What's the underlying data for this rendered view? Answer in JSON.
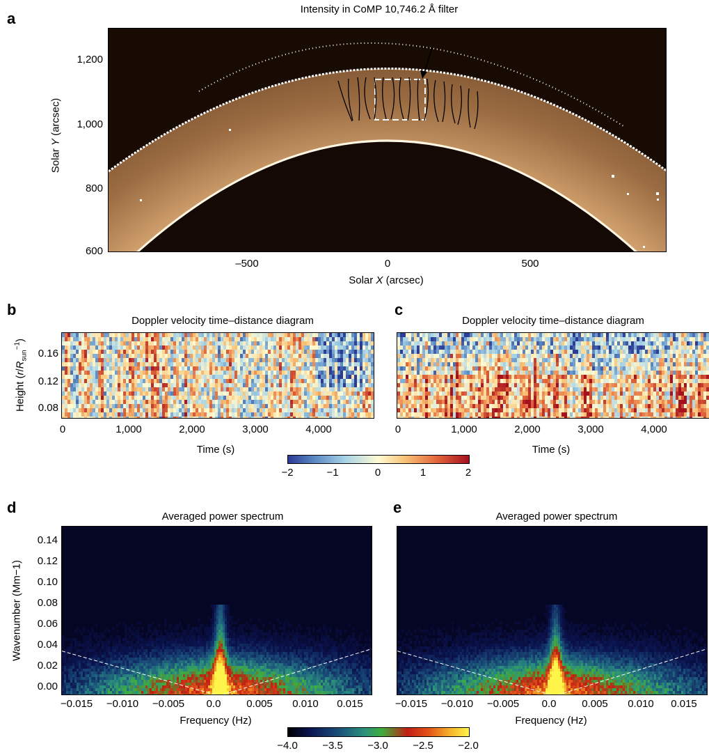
{
  "panels": {
    "a": {
      "letter": "a",
      "title": "Intensity in CoMP 10,746.2 Å filter",
      "xlabel": "Solar X (arcsec)",
      "ylabel": "Solar Y (arcsec)",
      "xticks": [
        "–500",
        "0",
        "500"
      ],
      "yticks": [
        "1,200",
        "1,000",
        "800",
        "600"
      ],
      "xlim": [
        -980,
        980
      ],
      "ylim": [
        600,
        1300
      ]
    },
    "b": {
      "letter": "b",
      "title": "Doppler velocity time–distance diagram",
      "xlabel": "Time (s)",
      "ylabel": "Height (r/R_sun^-1)",
      "ylabel_parts": [
        "Height (",
        "r",
        "/",
        "R",
        "sun",
        "−1",
        ")"
      ],
      "xticks": [
        "0",
        "1,000",
        "2,000",
        "3,000",
        "4,000"
      ],
      "yticks": [
        "0.16",
        "0.12",
        "0.08"
      ]
    },
    "c": {
      "letter": "c",
      "title": "Doppler velocity time–distance diagram",
      "xlabel": "Time (s)",
      "xticks": [
        "0",
        "1,000",
        "2,000",
        "3,000",
        "4,000"
      ]
    },
    "d": {
      "letter": "d",
      "title": "Averaged power spectrum",
      "xlabel": "Frequency (Hz)",
      "ylabel": "Wavenumber (Mm−1)",
      "xticks": [
        "−0.015",
        "−0.010",
        "−0.005",
        "0.0",
        "0.005",
        "0.010",
        "0.015"
      ],
      "yticks": [
        "0.14",
        "0.12",
        "0.10",
        "0.08",
        "0.06",
        "0.04",
        "0.02",
        "0.00"
      ]
    },
    "e": {
      "letter": "e",
      "title": "Averaged power spectrum",
      "xlabel": "Frequency (Hz)",
      "xticks": [
        "−0.015",
        "−0.010",
        "−0.005",
        "0.0",
        "0.005",
        "0.010",
        "0.015"
      ]
    }
  },
  "colorbars": {
    "velocity": {
      "ticks": [
        "−2",
        "−1",
        "0",
        "1",
        "2"
      ],
      "range": [
        -2,
        2
      ]
    },
    "power": {
      "ticks": [
        "−4.0",
        "−3.5",
        "−3.0",
        "−2.5",
        "−2.0"
      ],
      "range": [
        -4.0,
        -2.0
      ]
    }
  },
  "colors": {
    "corona_dark": "#1a0d05",
    "corona_light": "#e8c698",
    "spectrum_bg": "#050524"
  }
}
